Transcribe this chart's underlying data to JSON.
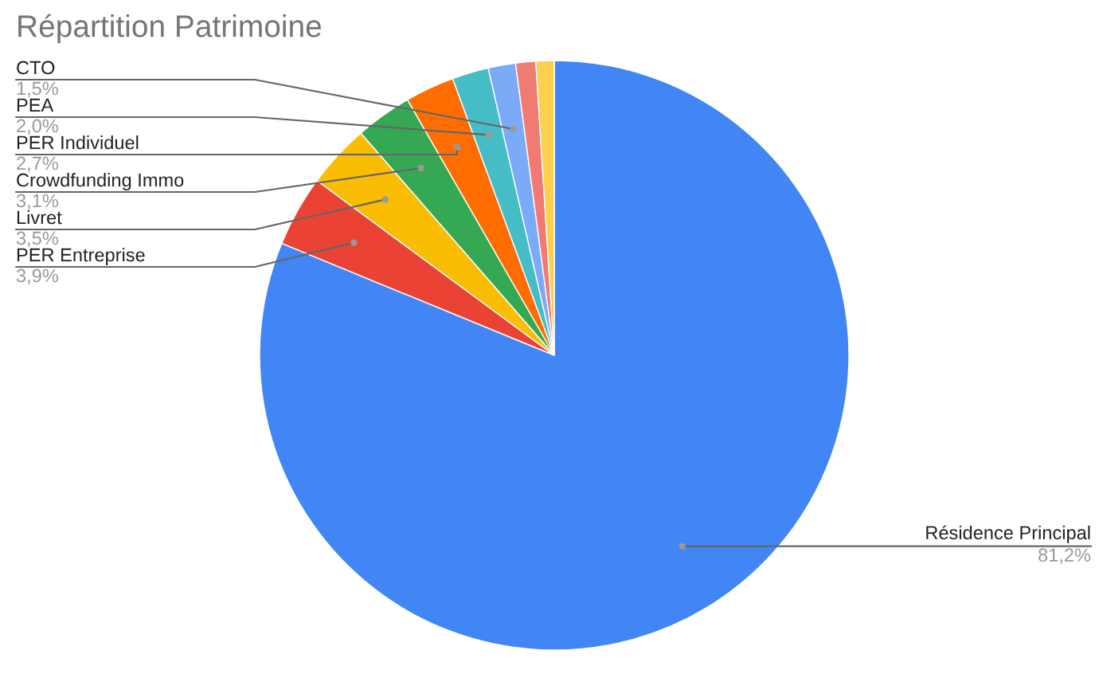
{
  "chart_data": {
    "type": "pie",
    "title": "Répartition Patrimoine",
    "categories": [
      "Résidence Principal",
      "PER Entreprise",
      "Livret",
      "Crowdfunding Immo",
      "PER Individuel",
      "PEA",
      "CTO",
      null,
      null
    ],
    "values": [
      81.2,
      3.9,
      3.5,
      3.1,
      2.7,
      2.0,
      1.5,
      1.1,
      1.0
    ],
    "colors": [
      "#4285f4",
      "#ea4335",
      "#fbbc04",
      "#34a853",
      "#ff6d01",
      "#46bdc6",
      "#7baaf7",
      "#f07b72",
      "#fcd04f"
    ],
    "value_labels": [
      "81,2%",
      "3,9%",
      "3,5%",
      "3,1%",
      "2,7%",
      "2,0%",
      "1,5%",
      null,
      null
    ]
  }
}
